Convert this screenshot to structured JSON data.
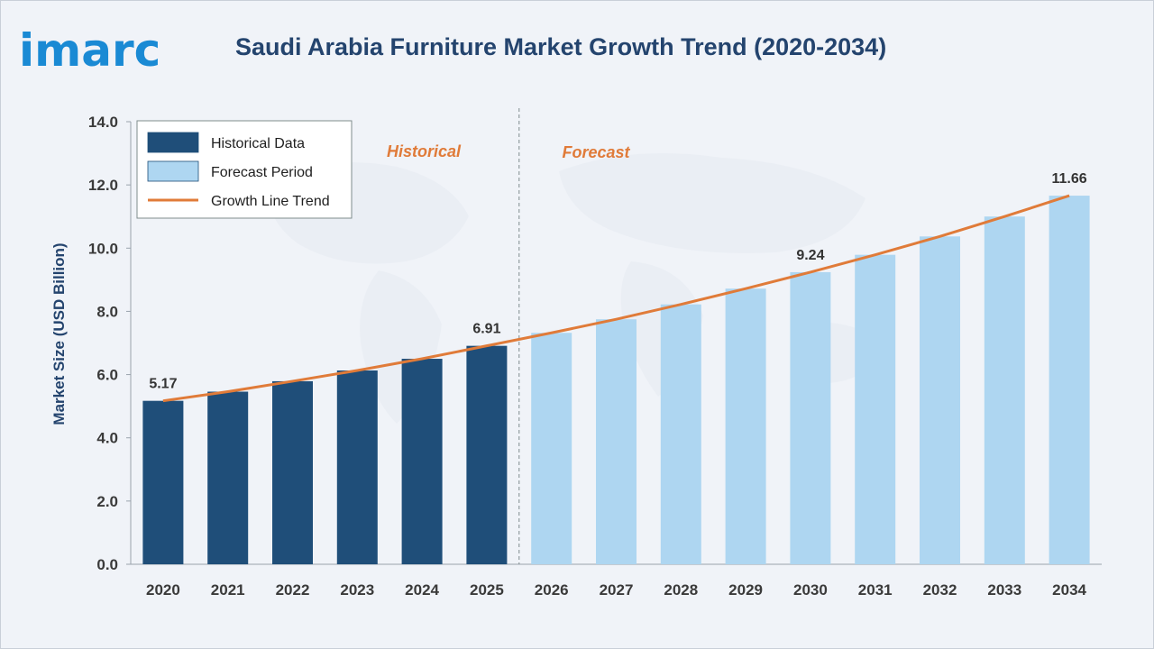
{
  "brand": {
    "logo_text": "imarc"
  },
  "chart_data": {
    "type": "bar",
    "title": "Saudi Arabia Furniture Market Growth Trend (2020-2034)",
    "xlabel": "",
    "ylabel": "Market Size (USD Billion)",
    "ylim": [
      0,
      14
    ],
    "yticks": [
      "0.0",
      "2.0",
      "4.0",
      "6.0",
      "8.0",
      "10.0",
      "12.0",
      "14.0"
    ],
    "categories": [
      "2020",
      "2021",
      "2022",
      "2023",
      "2024",
      "2025",
      "2026",
      "2027",
      "2028",
      "2029",
      "2030",
      "2031",
      "2032",
      "2033",
      "2034"
    ],
    "values": [
      5.17,
      5.46,
      5.79,
      6.13,
      6.5,
      6.91,
      7.32,
      7.75,
      8.22,
      8.72,
      9.24,
      9.79,
      10.37,
      11.0,
      11.66
    ],
    "historical_count": 6,
    "data_labels": [
      {
        "index": 0,
        "text": "5.17"
      },
      {
        "index": 5,
        "text": "6.91"
      },
      {
        "index": 10,
        "text": "9.24"
      },
      {
        "index": 14,
        "text": "11.66"
      }
    ],
    "period_labels": {
      "historical": "Historical",
      "forecast": "Forecast"
    },
    "legend": {
      "position": "top-left",
      "items": [
        {
          "label": "Historical Data",
          "kind": "bar",
          "color": "#1f4e79"
        },
        {
          "label": "Forecast Period",
          "kind": "bar",
          "color": "#aed6f1"
        },
        {
          "label": "Growth Line Trend",
          "kind": "line",
          "color": "#e07b39"
        }
      ]
    },
    "colors": {
      "historical": "#1f4e79",
      "forecast": "#aed6f1",
      "trend": "#e07b39",
      "divider": "#7f8c8d"
    },
    "grid": false
  }
}
